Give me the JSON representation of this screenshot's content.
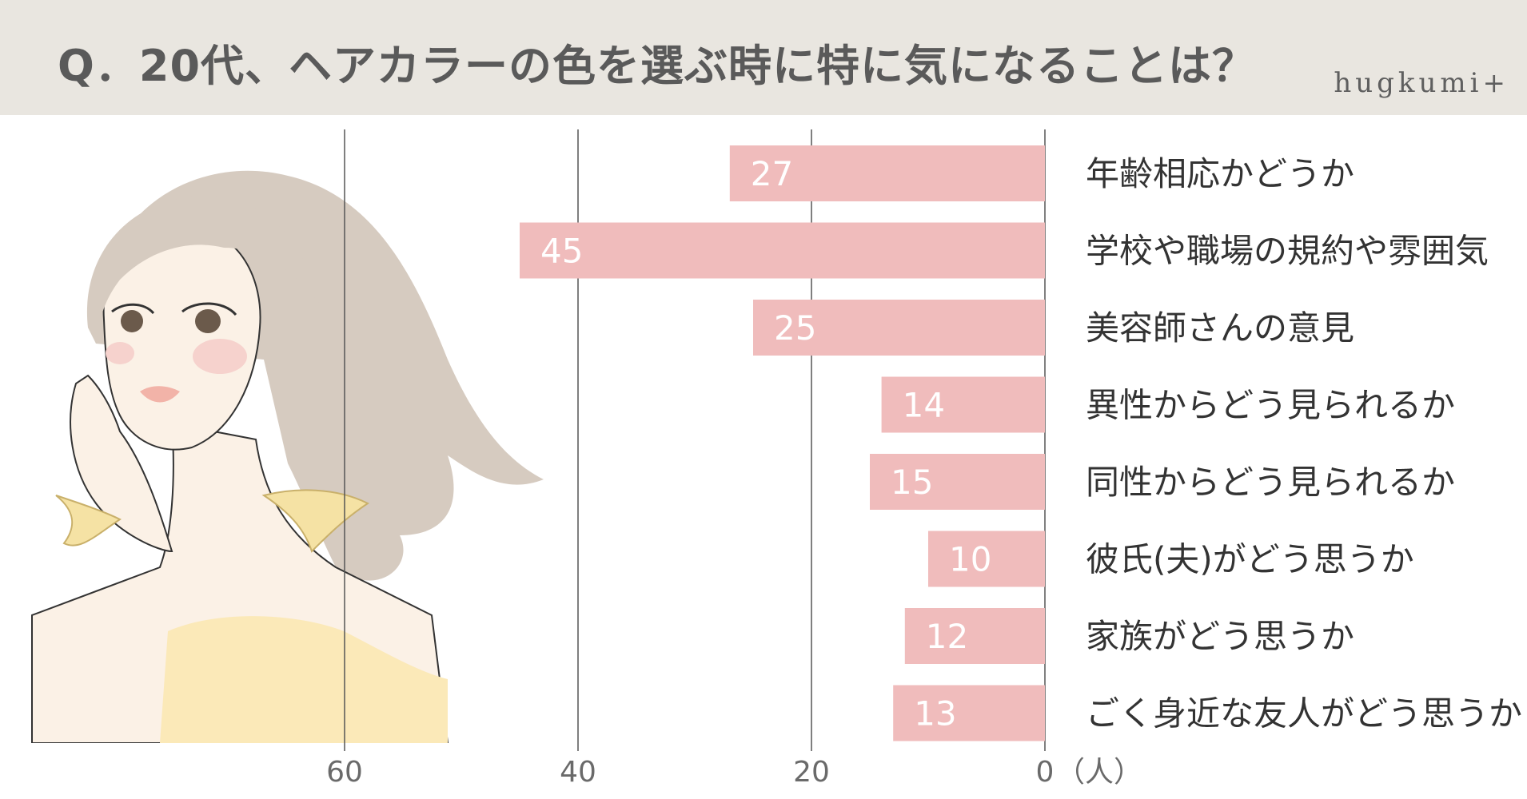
{
  "header": {
    "title": "Q．20代、ヘアカラーの色を選ぶ時に特に気になることは？",
    "brand": "hugkumi+"
  },
  "colors": {
    "bar": "#f0bcbc",
    "header_bg": "#e9e6e0",
    "gridline": "#555555"
  },
  "chart_data": {
    "type": "bar",
    "orientation": "horizontal",
    "direction": "right-to-left",
    "categories": [
      "年齢相応かどうか",
      "学校や職場の規約や雰囲気",
      "美容師さんの意見",
      "異性からどう見られるか",
      "同性からどう見られるか",
      "彼氏(夫)がどう思うか",
      "家族がどう思うか",
      "ごく身近な友人がどう思うか"
    ],
    "values": [
      27,
      45,
      25,
      14,
      15,
      10,
      12,
      13
    ],
    "xlim": [
      0,
      60
    ],
    "ticks": [
      0,
      20,
      40,
      60
    ],
    "tick_labels": [
      "0",
      "20",
      "40",
      "60"
    ],
    "unit": "（人）",
    "grid": true
  }
}
